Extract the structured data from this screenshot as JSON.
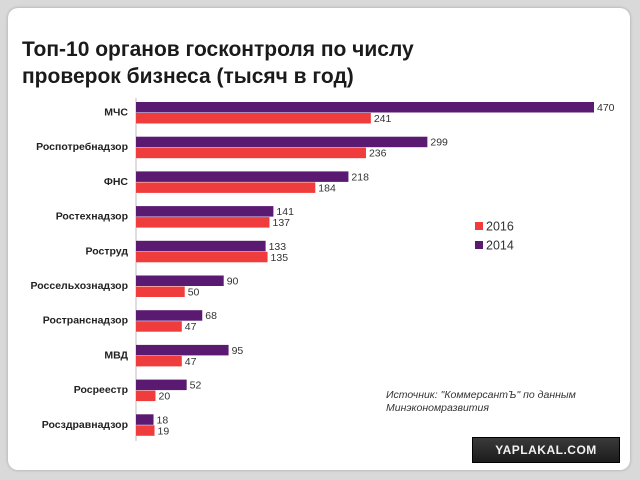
{
  "chart_data": {
    "type": "bar",
    "orientation": "horizontal",
    "title": "Топ-10 органов госконтроля по числу проверок бизнеса (тысяч в год)",
    "title_lines": [
      "Топ-10 органов госконтроля по числу",
      "проверок бизнеса (тысяч в год)"
    ],
    "categories": [
      "МЧС",
      "Роспотребнадзор",
      "ФНС",
      "Ростехнадзор",
      "Роструд",
      "Россельхознадзор",
      "Ространснадзор",
      "МВД",
      "Росреестр",
      "Росздравнадзор"
    ],
    "series": [
      {
        "name": "2014",
        "color": "#5b1a72",
        "values": [
          470,
          299,
          218,
          141,
          133,
          90,
          68,
          95,
          52,
          18
        ]
      },
      {
        "name": "2016",
        "color": "#ef3d3d",
        "values": [
          241,
          236,
          184,
          137,
          135,
          50,
          47,
          47,
          20,
          19
        ]
      }
    ],
    "legend": [
      {
        "label": "2016",
        "color": "#ef3d3d"
      },
      {
        "label": "2014",
        "color": "#5b1a72"
      }
    ],
    "legend_position": "right",
    "xlim": [
      0,
      470
    ],
    "grid": false
  },
  "source_note": "Источник: \"КоммерсантЪ\" по данным Минэкономразвития",
  "watermark": "YAPLAKAL.COM"
}
